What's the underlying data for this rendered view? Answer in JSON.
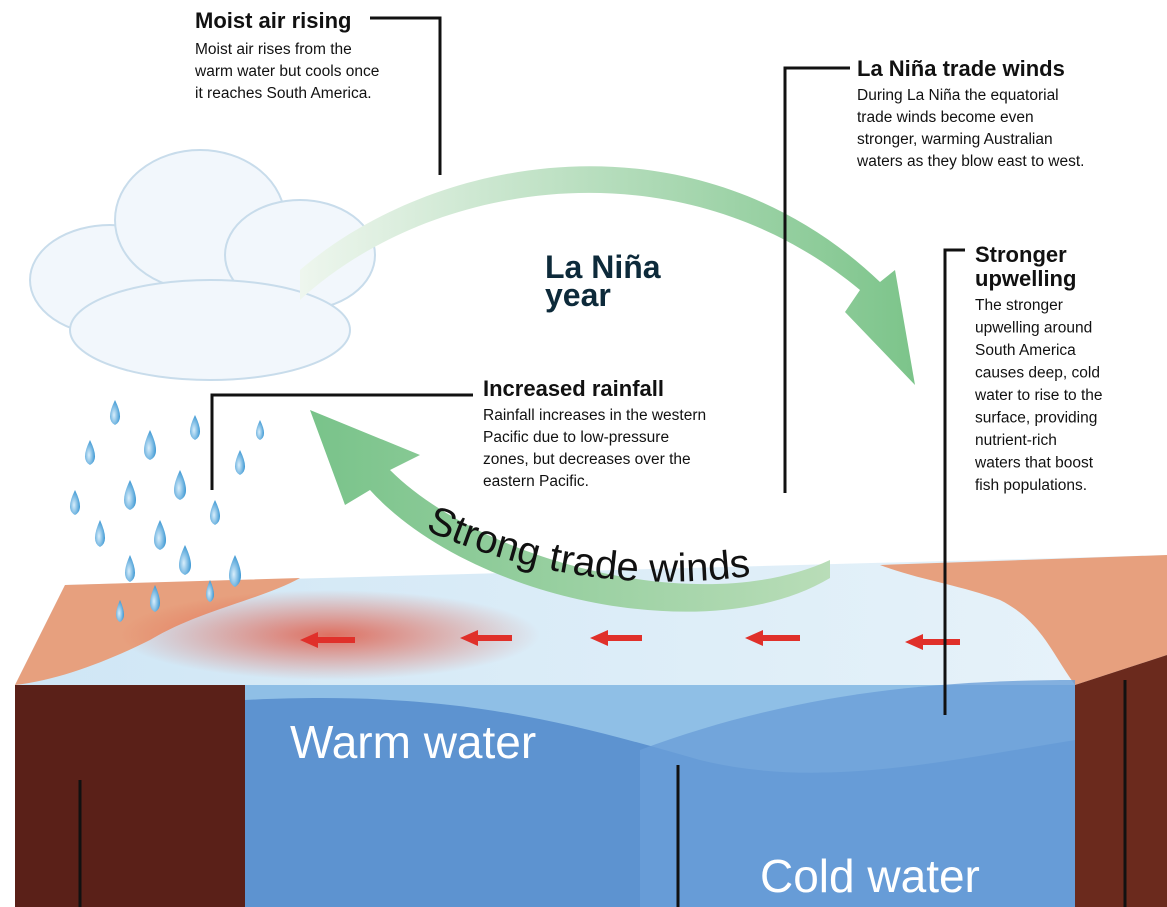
{
  "title": [
    "La Niña",
    "year"
  ],
  "callouts": [
    {
      "heading": [
        "Moist air rising"
      ],
      "body": [
        "Moist air rises from the",
        "warm water but cools once",
        "it reaches South America."
      ]
    },
    {
      "heading": [
        "La Niña trade winds"
      ],
      "body": [
        "During La Niña the equatorial",
        "trade winds become even",
        "stronger, warming Australian",
        "waters as they blow east to west."
      ]
    },
    {
      "heading": [
        "Stronger",
        "upwelling"
      ],
      "body": [
        "The stronger",
        "upwelling around",
        "South America",
        "causes deep, cold",
        "water to rise to the",
        "surface, providing",
        "nutrient-rich",
        "waters that boost",
        "fish populations."
      ]
    },
    {
      "heading": [
        "Increased rainfall"
      ],
      "body": [
        "Rainfall increases in the western",
        "Pacific due to low-pressure",
        "zones, but decreases over the",
        "eastern Pacific."
      ]
    }
  ],
  "scene_labels": {
    "wind": "Strong trade winds",
    "warm": "Warm water",
    "cold": "Cold water"
  }
}
